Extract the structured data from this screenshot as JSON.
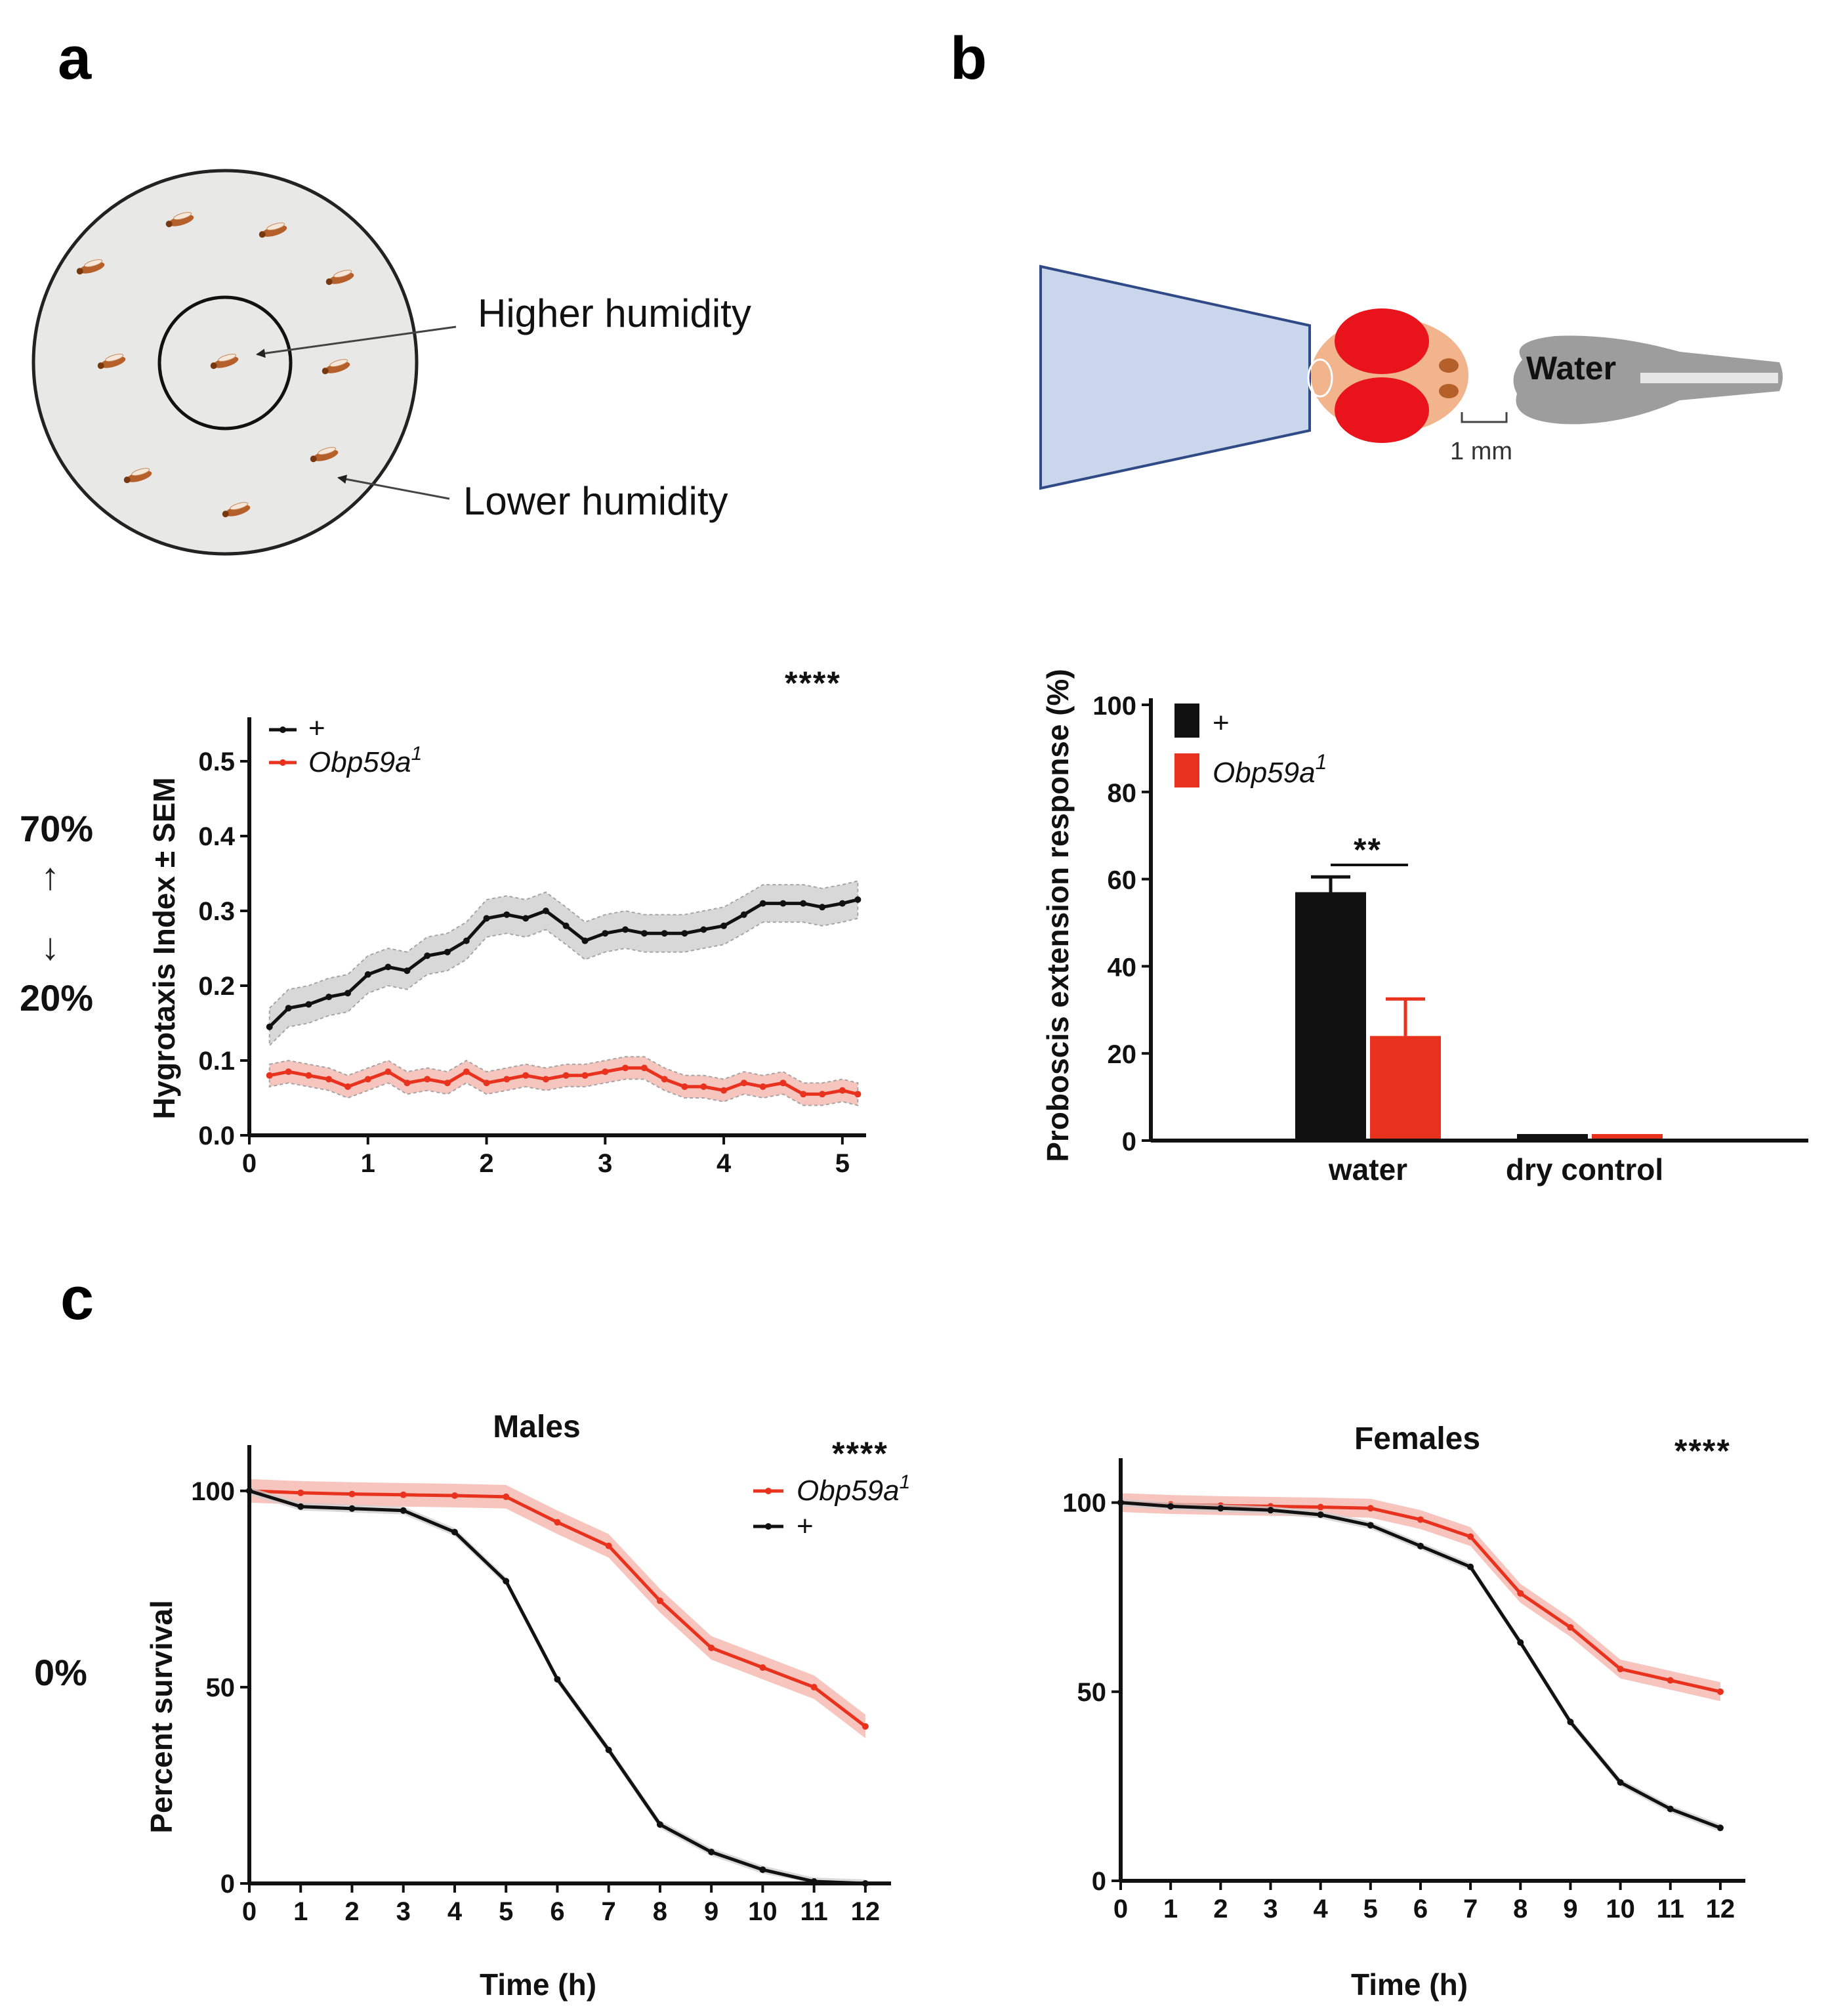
{
  "panels": {
    "a": "a",
    "b": "b",
    "c": "c"
  },
  "diagram_a": {
    "inner_label": "Higher humidity",
    "outer_label": "Lower humidity"
  },
  "diagram_b": {
    "water_label": "Water",
    "scale_label": "1 mm"
  },
  "side_labels": {
    "high": "70%",
    "up_arrow": "↑",
    "down_arrow": "↓",
    "low": "20%",
    "zero": "0%"
  },
  "colors": {
    "control": "#111111",
    "mutant": "#e8321e",
    "control_band": "#cccccc",
    "mutant_band": "#f4b2a8",
    "arena": "#e8e8e6",
    "fly": "#b5602a",
    "stimulator": "#c9d6ec",
    "head": "#f2b48c",
    "eye": "#e8131b"
  },
  "chart_data": [
    {
      "id": "hygrotaxis",
      "type": "line",
      "title": "",
      "stars": "****",
      "ylabel": "Hygrotaxis Index ± SEM",
      "xlabel": "",
      "xlim": [
        0,
        5.2
      ],
      "ylim": [
        0,
        0.55
      ],
      "xticks": [
        "0",
        "1",
        "2",
        "3",
        "4",
        "5"
      ],
      "yticks": [
        "0.0",
        "0.1",
        "0.2",
        "0.3",
        "0.4",
        "0.5"
      ],
      "legend": [
        "+",
        "Obp59a"
      ],
      "legend_sup": "1",
      "x": [
        0.17,
        0.33,
        0.5,
        0.67,
        0.83,
        1.0,
        1.17,
        1.33,
        1.5,
        1.67,
        1.83,
        2.0,
        2.17,
        2.33,
        2.5,
        2.67,
        2.83,
        3.0,
        3.17,
        3.33,
        3.5,
        3.67,
        3.83,
        4.0,
        4.17,
        4.33,
        4.5,
        4.67,
        4.83,
        5.0,
        5.13
      ],
      "series": [
        {
          "name": "+",
          "values": [
            0.145,
            0.17,
            0.175,
            0.185,
            0.19,
            0.215,
            0.225,
            0.22,
            0.24,
            0.245,
            0.26,
            0.29,
            0.295,
            0.29,
            0.3,
            0.28,
            0.26,
            0.27,
            0.275,
            0.27,
            0.27,
            0.27,
            0.275,
            0.28,
            0.295,
            0.31,
            0.31,
            0.31,
            0.305,
            0.31,
            0.315
          ],
          "sem": 0.025
        },
        {
          "name": "Obp59a1",
          "values": [
            0.08,
            0.085,
            0.08,
            0.075,
            0.065,
            0.075,
            0.085,
            0.07,
            0.075,
            0.07,
            0.085,
            0.07,
            0.075,
            0.08,
            0.075,
            0.08,
            0.08,
            0.085,
            0.09,
            0.09,
            0.075,
            0.065,
            0.065,
            0.06,
            0.07,
            0.065,
            0.07,
            0.055,
            0.055,
            0.06,
            0.055
          ],
          "sem": 0.015
        }
      ]
    },
    {
      "id": "per",
      "type": "bar",
      "title": "",
      "stars": "**",
      "ylabel": "Proboscis extension response (%)",
      "xlabel": "",
      "ylim": [
        0,
        100
      ],
      "yticks": [
        "0",
        "20",
        "40",
        "60",
        "80",
        "100"
      ],
      "categories": [
        "water",
        "dry control"
      ],
      "legend": [
        "+",
        "Obp59a"
      ],
      "legend_sup": "1",
      "series": [
        {
          "name": "+",
          "values": [
            57,
            1.5
          ],
          "err": [
            3.5,
            0
          ]
        },
        {
          "name": "Obp59a1",
          "values": [
            24,
            1.5
          ],
          "err": [
            8.5,
            0
          ]
        }
      ]
    },
    {
      "id": "survival_males",
      "type": "line",
      "title": "Males",
      "stars": "****",
      "ylabel": "Percent survival",
      "xlabel": "Time (h)",
      "xlim": [
        0,
        12.5
      ],
      "ylim": [
        0,
        110
      ],
      "xticks": [
        "0",
        "1",
        "2",
        "3",
        "4",
        "5",
        "6",
        "7",
        "8",
        "9",
        "10",
        "11",
        "12"
      ],
      "yticks": [
        "0",
        "50",
        "100"
      ],
      "legend": [
        "Obp59a",
        "+"
      ],
      "legend_sup": "1",
      "x": [
        0,
        1,
        2,
        3,
        4,
        5,
        6,
        7,
        8,
        9,
        10,
        11,
        12
      ],
      "series": [
        {
          "name": "Obp59a1",
          "values": [
            100,
            99.5,
            99.2,
            99,
            98.8,
            98.5,
            92,
            86,
            72,
            60,
            55,
            50,
            40
          ],
          "sem": 3
        },
        {
          "name": "+",
          "values": [
            100,
            96,
            95.5,
            95,
            89.5,
            77,
            52,
            34,
            15,
            8,
            3.5,
            0.5,
            0
          ],
          "sem": 1
        }
      ]
    },
    {
      "id": "survival_females",
      "type": "line",
      "title": "Females",
      "stars": "****",
      "ylabel": "",
      "xlabel": "Time (h)",
      "xlim": [
        0,
        12.5
      ],
      "ylim": [
        0,
        110
      ],
      "xticks": [
        "0",
        "1",
        "2",
        "3",
        "4",
        "5",
        "6",
        "7",
        "8",
        "9",
        "10",
        "11",
        "12"
      ],
      "yticks": [
        "0",
        "50",
        "100"
      ],
      "legend": [],
      "x": [
        0,
        1,
        2,
        3,
        4,
        5,
        6,
        7,
        8,
        9,
        10,
        11,
        12
      ],
      "series": [
        {
          "name": "Obp59a1",
          "values": [
            100,
            99.5,
            99.2,
            99,
            98.8,
            98.5,
            95.5,
            91,
            76,
            67,
            56,
            53,
            50
          ],
          "sem": 2.5
        },
        {
          "name": "+",
          "values": [
            100,
            99,
            98.5,
            98,
            96.8,
            94,
            88.5,
            83,
            63,
            42,
            26,
            19,
            14
          ],
          "sem": 1
        }
      ]
    }
  ]
}
